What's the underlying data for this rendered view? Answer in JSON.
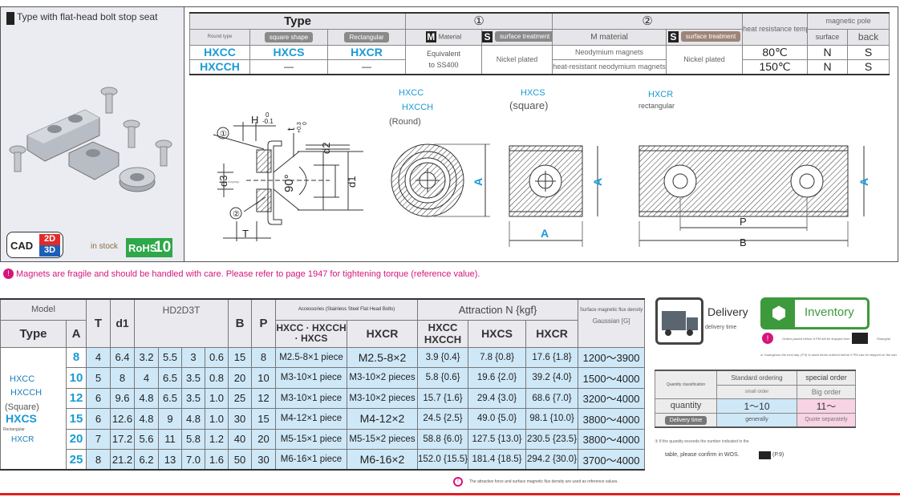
{
  "product": {
    "title": "Type with flat-head bolt stop seat",
    "cad": "CAD",
    "cad_2d": "2D",
    "cad_3d": "3D",
    "stock": "in stock",
    "rohs": "RoHS",
    "rohs_num": "10"
  },
  "type_table": {
    "type_header": "Type",
    "part1": "①",
    "part2": "②",
    "round": "Round type",
    "square": "square shape",
    "rect": "Rectangular",
    "m_icon": "M",
    "m1": "Material",
    "s_icon": "S",
    "s1": "surface treatment",
    "m2": "M material",
    "s2": "surface treatment",
    "temp_header": "heat resistance temperature",
    "pole_header": "magnetic pole",
    "surface": "surface",
    "back": "back",
    "rows": [
      {
        "round": "HXCC",
        "square": "HXCS",
        "rect": "HXCR",
        "temp": "80℃",
        "surface": "N",
        "back": "S",
        "magnet": "Neodymium magnets"
      },
      {
        "round": "HXCCH",
        "square": "—",
        "rect": "—",
        "temp": "150℃",
        "surface": "N",
        "back": "S",
        "magnet": "heat-resistant neodymium magnets"
      }
    ],
    "material1": "Equivalent",
    "material1b": "to SS400",
    "treatment1": "Nickel plated",
    "treatment2": "Nickel plated"
  },
  "drawing": {
    "H": "H",
    "H_tol_up": "0",
    "H_tol_low": "-0.1",
    "t": "t",
    "t_tol_up": "+0.3",
    "t_tol_low": "0",
    "d2": "d2",
    "d3": "d3",
    "d1": "d1",
    "angle": "90°",
    "T": "T",
    "c1": "①",
    "c2": "②",
    "anyway": "Anyway",
    "round_label1": "HXCC",
    "round_label2": "HXCCH",
    "round_label3": "(Round)",
    "square_label1": "HXCS",
    "square_label2": "(square)",
    "rect_label1": "HXCR",
    "rect_label2": "rectangular",
    "A": "A",
    "P": "P",
    "B": "B"
  },
  "warning": "Magnets are fragile and should be handled with care. Please refer to page 1947 for tightening torque (reference value).",
  "spec_table": {
    "model": "Model",
    "type": "Type",
    "A": "A",
    "T": "T",
    "d1": "d1",
    "group": "HD2D3T",
    "B": "B",
    "P": "P",
    "accessories": "Accessories (Stainless Steel Flat Head Bolts)",
    "acc1": "HXCC · HXCCH · HXCS",
    "acc2": "HXCR",
    "attraction": "Attraction N {kgf}",
    "att1a": "HXCC",
    "att1b": "HXCCH",
    "att2": "HXCS",
    "att3": "HXCR",
    "flux": "Surface magnetic flux density",
    "gauss": "Gaussian [G]",
    "type_labels": {
      "round1": "HXCC",
      "round2": "HXCCH",
      "square_paren": "(Square)",
      "square": "HXCS",
      "rect_small": "Rectangular",
      "rect": "HXCR"
    },
    "rows": [
      {
        "A": "8",
        "T": "4",
        "d1": "6.4",
        "c3": "3.2",
        "c4": "5.5",
        "c5": "3",
        "c6": "0.6",
        "B": "15",
        "P": "8",
        "acc1": "M2.5-8×1 piece",
        "acc2": "M2.5-8×2",
        "at1": "3.9 {0.4}",
        "at2": "7.8 {0.8}",
        "at3": "17.6 {1.8}",
        "g": "1200〜3900"
      },
      {
        "A": "10",
        "T": "5",
        "d1": "8",
        "c3": "4",
        "c4": "6.5",
        "c5": "3.5",
        "c6": "0.8",
        "B": "20",
        "P": "10",
        "acc1": "M3-10×1 piece",
        "acc2": "M3-10×2 pieces",
        "at1": "5.8 {0.6}",
        "at2": "19.6 {2.0}",
        "at3": "39.2 {4.0}",
        "g": "1500〜4000"
      },
      {
        "A": "12",
        "T": "6",
        "d1": "9.6",
        "c3": "4.8",
        "c4": "6.5",
        "c5": "3.5",
        "c6": "1.0",
        "B": "25",
        "P": "12",
        "acc1": "M3-10×1 piece",
        "acc2": "M3-10×2 pieces",
        "at1": "15.7 {1.6}",
        "at2": "29.4 {3.0}",
        "at3": "68.6 {7.0}",
        "g": "3200〜4000"
      },
      {
        "A": "15",
        "T": "6",
        "d1": "12.6",
        "c3": "4.8",
        "c4": "9",
        "c5": "4.8",
        "c6": "1.0",
        "B": "30",
        "P": "15",
        "acc1": "M4-12×1 piece",
        "acc2": "M4-12×2",
        "at1": "24.5 {2.5}",
        "at2": "49.0 {5.0}",
        "at3": "98.1 {10.0}",
        "g": "3800〜4000"
      },
      {
        "A": "20",
        "T": "7",
        "d1": "17.2",
        "c3": "5.6",
        "c4": "11",
        "c5": "5.8",
        "c6": "1.2",
        "B": "40",
        "P": "20",
        "acc1": "M5-15×1 piece",
        "acc2": "M5-15×2 pieces",
        "at1": "58.8 {6.0}",
        "at2": "127.5 {13.0}",
        "at3": "230.5 {23.5}",
        "g": "3800〜4000"
      },
      {
        "A": "25",
        "T": "8",
        "d1": "21.2",
        "c3": "6.2",
        "c4": "13",
        "c5": "7.0",
        "c6": "1.6",
        "B": "50",
        "P": "30",
        "acc1": "M6-16×1 piece",
        "acc2": "M6-16×2",
        "at1": "152.0 {15.5}",
        "at2": "181.4 {18.5}",
        "at3": "294.2 {30.0}",
        "g": "3700〜4000"
      }
    ],
    "note": "The attractive force and surface magnetic flux density are used as reference values."
  },
  "delivery": {
    "title": "Delivery",
    "subtitle": "delivery time",
    "inventory": "Inventory",
    "notice1": "Orders placed before 5 PM will be shipped from",
    "notice1b": "Shanghai",
    "notice2": "or Guangzhou the next day. (P.9) In stock items ordered before 5 PM can be shipped on the same day.",
    "table": {
      "qc": "Quantity classification",
      "std": "Standard ordering",
      "special": "special order",
      "small": "small order",
      "big": "Big order",
      "quantity": "quantity",
      "q_std": "1〜10",
      "q_special": "11〜",
      "delivery_time": "Delivery time",
      "dt_std": "generally",
      "dt_special": "Quote separately"
    },
    "note1": "③ If the quantity exceeds the number indicated in the",
    "note2": "table, please confirm in WOS.",
    "note_ref": "(P.9)"
  },
  "colors": {
    "accent_blue": "#1a9ad6",
    "cell_blue": "#cfe8f7",
    "pink": "#f8d3e3",
    "inventory_green": "#3c9a3c",
    "warning_magenta": "#d4167a",
    "rule_red": "#e02020"
  }
}
